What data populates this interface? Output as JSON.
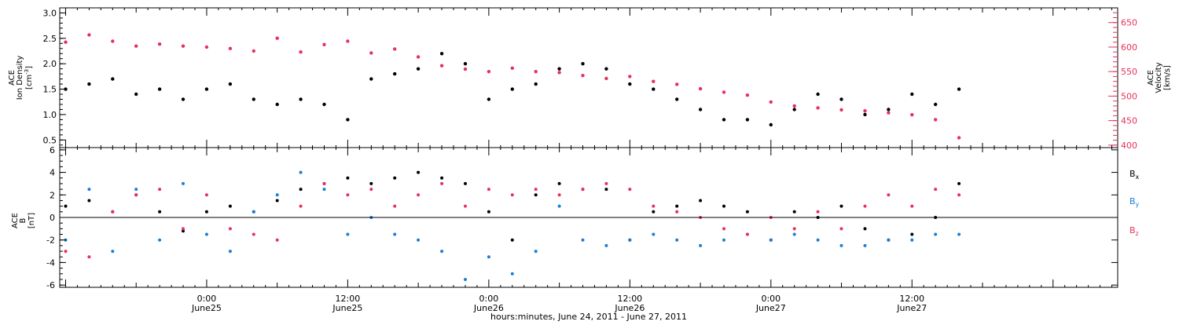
{
  "figure": {
    "x_axis_label": "hours:minutes, June 24, 2011 - June 27, 2011",
    "x_ticks": [
      {
        "hour": 12,
        "time": "0:00",
        "date": "June25"
      },
      {
        "hour": 24,
        "time": "12:00",
        "date": "June25"
      },
      {
        "hour": 36,
        "time": "0:00",
        "date": "June26"
      },
      {
        "hour": 48,
        "time": "12:00",
        "date": "June26"
      },
      {
        "hour": 60,
        "time": "0:00",
        "date": "June27"
      },
      {
        "hour": 72,
        "time": "12:00",
        "date": "June27"
      }
    ]
  },
  "colors": {
    "density": "#000000",
    "velocity": "#e8305a",
    "bx": "#000000",
    "by": "#1a7fd8",
    "bz": "#e8305a",
    "frame": "#000000"
  },
  "chart_data": [
    {
      "type": "scatter",
      "xlim": [
        -0.5,
        89.5
      ],
      "left_axis": {
        "label_lines": [
          "ACE",
          "Ion Density"
        ],
        "unit": "[cm",
        "unit_sup": "-3",
        "unit_end": "]",
        "ylim": [
          0.35,
          3.1
        ],
        "ticks": [
          0.5,
          1.0,
          1.5,
          2.0,
          2.5,
          3.0
        ],
        "tick_labels": [
          "0.5",
          "1.0",
          "1.5",
          "2.0",
          "2.5",
          "3.0"
        ]
      },
      "right_axis": {
        "label_lines": [
          "ACE",
          "Velocity"
        ],
        "unit": "[km/s]",
        "ylim": [
          395,
          680
        ],
        "ticks": [
          400,
          450,
          500,
          550,
          600,
          650
        ],
        "tick_labels": [
          "400",
          "450",
          "500",
          "550",
          "600",
          "650"
        ]
      },
      "series": [
        {
          "axis": "left",
          "color_key": "density",
          "x": [
            0,
            2,
            4,
            6,
            8,
            10,
            12,
            14,
            16,
            18,
            20,
            22,
            24,
            26,
            28,
            30,
            32,
            34,
            36,
            38,
            40,
            42,
            44,
            46,
            48,
            50,
            52,
            54,
            56,
            58,
            60,
            62,
            64,
            66,
            68,
            70,
            72,
            74,
            76
          ],
          "y": [
            1.5,
            1.6,
            1.7,
            1.4,
            1.5,
            1.3,
            1.5,
            1.6,
            1.3,
            1.2,
            1.3,
            1.2,
            0.9,
            1.7,
            1.8,
            1.9,
            2.2,
            2.0,
            1.3,
            1.5,
            1.6,
            1.9,
            2.0,
            1.9,
            1.6,
            1.5,
            1.3,
            1.1,
            0.9,
            0.9,
            0.8,
            1.1,
            1.4,
            1.3,
            1.0,
            1.1,
            1.4,
            1.2,
            1.5
          ]
        },
        {
          "axis": "right",
          "color_key": "velocity",
          "x": [
            0,
            2,
            4,
            6,
            8,
            10,
            12,
            14,
            16,
            18,
            20,
            22,
            24,
            26,
            28,
            30,
            32,
            34,
            36,
            38,
            40,
            42,
            44,
            46,
            48,
            50,
            52,
            54,
            56,
            58,
            60,
            62,
            64,
            66,
            68,
            70,
            72,
            74,
            76
          ],
          "y": [
            610,
            625,
            612,
            602,
            606,
            602,
            600,
            597,
            592,
            618,
            590,
            605,
            612,
            588,
            596,
            580,
            562,
            555,
            550,
            557,
            550,
            548,
            542,
            536,
            540,
            530,
            524,
            515,
            508,
            502,
            488,
            480,
            476,
            472,
            470,
            466,
            462,
            452,
            415
          ]
        }
      ]
    },
    {
      "type": "scatter",
      "xlim": [
        -0.5,
        89.5
      ],
      "ylabel_lines": [
        "ACE",
        "B"
      ],
      "ylabel_unit": "[nT]",
      "ylim": [
        -6.2,
        6.2
      ],
      "ticks": [
        -6,
        -4,
        -2,
        0,
        2,
        4,
        6
      ],
      "tick_labels": [
        "-6",
        "-4",
        "-2",
        "0",
        "2",
        "4",
        "6"
      ],
      "zero_line": true,
      "legend_position": "right",
      "series": [
        {
          "name": "B",
          "sub": "x",
          "color_key": "bx",
          "x": [
            0,
            2,
            4,
            6,
            8,
            10,
            12,
            14,
            16,
            18,
            20,
            22,
            24,
            26,
            28,
            30,
            32,
            34,
            36,
            38,
            40,
            42,
            44,
            46,
            48,
            50,
            52,
            54,
            56,
            58,
            60,
            62,
            64,
            66,
            68,
            70,
            72,
            74,
            76
          ],
          "y": [
            1.0,
            1.5,
            0.5,
            2.0,
            0.5,
            -1.2,
            0.5,
            1.0,
            0.5,
            1.5,
            2.5,
            3.0,
            3.5,
            3.0,
            3.5,
            4.0,
            3.5,
            3.0,
            0.5,
            -2.0,
            2.0,
            3.0,
            2.5,
            2.5,
            -2.0,
            0.5,
            1.0,
            1.5,
            1.0,
            0.5,
            -2.0,
            0.5,
            0.0,
            1.0,
            -1.0,
            -2.0,
            -1.5,
            0.0,
            3.0
          ]
        },
        {
          "name": "B",
          "sub": "y",
          "color_key": "by",
          "x": [
            0,
            2,
            4,
            6,
            8,
            10,
            12,
            14,
            16,
            18,
            20,
            22,
            24,
            26,
            28,
            30,
            32,
            34,
            36,
            38,
            40,
            42,
            44,
            46,
            48,
            50,
            52,
            54,
            56,
            58,
            60,
            62,
            64,
            66,
            68,
            70,
            72,
            74,
            76
          ],
          "y": [
            -2.0,
            2.5,
            -3.0,
            2.5,
            -2.0,
            3.0,
            -1.5,
            -3.0,
            0.5,
            2.0,
            4.0,
            2.5,
            -1.5,
            0.0,
            -1.5,
            -2.0,
            -3.0,
            -5.5,
            -3.5,
            -5.0,
            -3.0,
            1.0,
            -2.0,
            -2.5,
            -2.0,
            -1.5,
            -2.0,
            -2.5,
            -2.0,
            -1.5,
            -2.0,
            -1.5,
            -2.0,
            -2.5,
            -2.5,
            -2.0,
            -2.0,
            -1.5,
            -1.5
          ]
        },
        {
          "name": "B",
          "sub": "z",
          "color_key": "bz",
          "x": [
            0,
            2,
            4,
            6,
            8,
            10,
            12,
            14,
            16,
            18,
            20,
            22,
            24,
            26,
            28,
            30,
            32,
            34,
            36,
            38,
            40,
            42,
            44,
            46,
            48,
            50,
            52,
            54,
            56,
            58,
            60,
            62,
            64,
            66,
            68,
            70,
            72,
            74,
            76
          ],
          "y": [
            -3.0,
            -3.5,
            0.5,
            2.0,
            2.5,
            -1.0,
            2.0,
            -1.0,
            -1.5,
            -2.0,
            1.0,
            3.0,
            2.0,
            2.5,
            1.0,
            2.0,
            3.0,
            1.0,
            2.5,
            2.0,
            2.5,
            2.0,
            2.5,
            3.0,
            2.5,
            1.0,
            0.5,
            0.0,
            -1.0,
            -1.5,
            0.0,
            -1.0,
            0.5,
            -1.0,
            1.0,
            2.0,
            1.0,
            2.5,
            2.0
          ]
        }
      ]
    }
  ]
}
